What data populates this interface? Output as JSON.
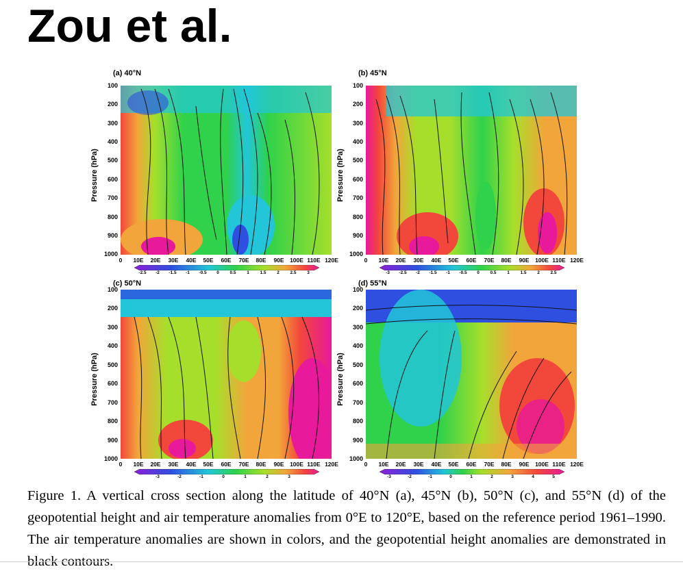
{
  "title": "Zou et al.",
  "caption": "Figure 1. A vertical cross section along the latitude of 40°N (a), 45°N (b), 50°N (c), and 55°N (d) of the geopotential height and air temperature anomalies from 0°E to 120°E, based on the reference period 1961–1990. The air temperature anomalies are shown in colors, and the geopotential height anomalies are demonstrated in black contours.",
  "ylabel": "Pressure (hPa)",
  "yticks": [
    "100",
    "200",
    "300",
    "400",
    "500",
    "600",
    "700",
    "800",
    "900",
    "1000"
  ],
  "xticks": [
    "0",
    "10E",
    "20E",
    "30E",
    "40E",
    "50E",
    "60E",
    "70E",
    "80E",
    "90E",
    "100E",
    "110E",
    "120E"
  ],
  "panels": [
    {
      "label": "(a) 40°N",
      "colorbar": [
        "-2.5",
        "-2",
        "-1.5",
        "-1",
        "-0.5",
        "0",
        "0.5",
        "1",
        "1.5",
        "2",
        "2.5",
        "3"
      ]
    },
    {
      "label": "(b) 45°N",
      "colorbar": [
        "-3",
        "-2.5",
        "-2",
        "-1.5",
        "-1",
        "-0.5",
        "0",
        "0.5",
        "1",
        "1.5",
        "2",
        "2.5"
      ]
    },
    {
      "label": "(c) 50°N",
      "colorbar": [
        "-3",
        "-2",
        "-1",
        "0",
        "1",
        "2",
        "3"
      ]
    },
    {
      "label": "(d) 55°N",
      "colorbar": [
        "-3",
        "-2",
        "-1",
        "0",
        "1",
        "2",
        "3",
        "4",
        "5"
      ]
    }
  ],
  "colors": {
    "purple": "#8b1fd6",
    "blue": "#2e4fe0",
    "cyan": "#22c6d8",
    "green": "#2fd24a",
    "yellowgreen": "#a6df2b",
    "orange": "#f2a53a",
    "red": "#f2473b",
    "magenta": "#e8199a"
  }
}
